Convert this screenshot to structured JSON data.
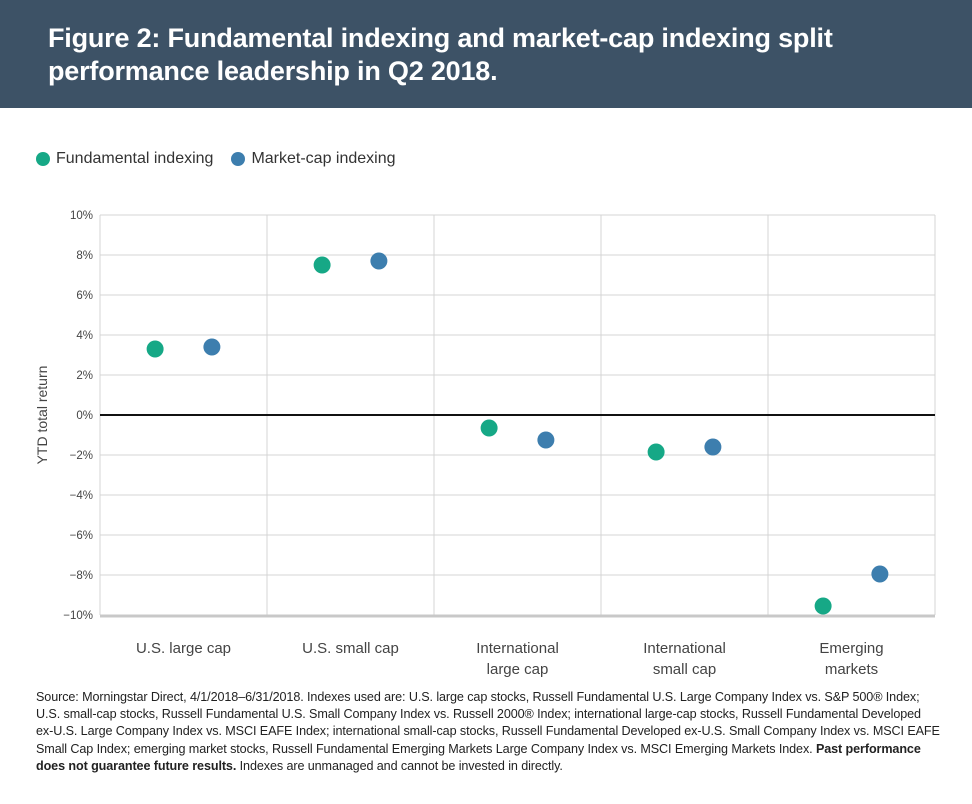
{
  "title": "Figure 2: Fundamental indexing and market-cap indexing split performance leadership in Q2 2018.",
  "legend": [
    {
      "label": "Fundamental indexing",
      "color": "#16a886"
    },
    {
      "label": "Market-cap indexing",
      "color": "#3d7eae"
    }
  ],
  "chart_data": {
    "type": "scatter",
    "ylabel": "YTD total return",
    "ylim": [
      -10,
      10
    ],
    "yticks": [
      10,
      8,
      6,
      4,
      2,
      0,
      -2,
      -4,
      -6,
      -8,
      -10
    ],
    "ytick_labels": [
      "10%",
      "8%",
      "6%",
      "4%",
      "2%",
      "0%",
      "−2%",
      "−4%",
      "−6%",
      "−8%",
      "−10%"
    ],
    "categories": [
      [
        "U.S. large cap"
      ],
      [
        "U.S. small cap"
      ],
      [
        "International",
        "large cap"
      ],
      [
        "International",
        "small cap"
      ],
      [
        "Emerging",
        "markets"
      ]
    ],
    "series": [
      {
        "name": "Fundamental indexing",
        "color": "#16a886",
        "values": [
          3.3,
          7.5,
          -0.65,
          -1.85,
          -9.55
        ]
      },
      {
        "name": "Market-cap indexing",
        "color": "#3d7eae",
        "values": [
          3.4,
          7.7,
          -1.25,
          -1.6,
          -7.95
        ]
      }
    ]
  },
  "source": {
    "text": "Source: Morningstar Direct, 4/1/2018–6/31/2018. Indexes used are: U.S. large cap stocks, Russell Fundamental U.S. Large Company Index vs. S&P 500® Index; U.S. small-cap stocks, Russell Fundamental U.S. Small Company Index vs. Russell 2000® Index; international large-cap stocks, Russell Fundamental Developed ex-U.S. Large Company Index vs. MSCI EAFE Index; international small-cap stocks, Russell Fundamental Developed ex-U.S. Small Company Index vs. MSCI EAFE Small Cap Index; emerging market stocks, Russell Fundamental Emerging Markets Large Company Index vs. MSCI Emerging Markets Index.",
    "bold": "Past performance does not guarantee future results.",
    "tail": "Indexes are unmanaged and cannot be invested in directly."
  }
}
